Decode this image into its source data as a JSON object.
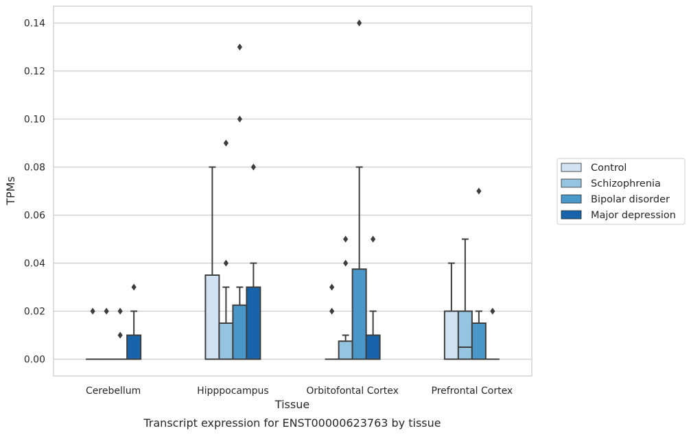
{
  "caption": "Transcript expression for ENST00000623763 by tissue",
  "chart_data": {
    "type": "boxplot",
    "xlabel": "Tissue",
    "ylabel": "TPMs",
    "ylim": [
      -0.007,
      0.147
    ],
    "yticks": [
      "0.00",
      "0.02",
      "0.04",
      "0.06",
      "0.08",
      "0.10",
      "0.12",
      "0.14"
    ],
    "grid": true,
    "legend_position": "right",
    "categories": [
      "Cerebellum",
      "Hipppocampus",
      "Orbitofontal Cortex",
      "Prefrontal Cortex"
    ],
    "series": [
      {
        "name": "Control",
        "color": "#d0e1f2",
        "boxes": [
          {
            "q1": 0,
            "median": 0,
            "q3": 0,
            "whislo": 0,
            "whishi": 0,
            "fliers": [
              0.02
            ]
          },
          {
            "q1": 0,
            "median": 0,
            "q3": 0.035,
            "whislo": 0,
            "whishi": 0.08,
            "fliers": []
          },
          {
            "q1": 0,
            "median": 0,
            "q3": 0,
            "whislo": 0,
            "whishi": 0,
            "fliers": [
              0.02,
              0.03
            ]
          },
          {
            "q1": 0,
            "median": 0,
            "q3": 0.02,
            "whislo": 0,
            "whishi": 0.04,
            "fliers": []
          }
        ]
      },
      {
        "name": "Schizophrenia",
        "color": "#94c4df",
        "boxes": [
          {
            "q1": 0,
            "median": 0,
            "q3": 0,
            "whislo": 0,
            "whishi": 0,
            "fliers": [
              0.02
            ]
          },
          {
            "q1": 0,
            "median": 0,
            "q3": 0.015,
            "whislo": 0,
            "whishi": 0.03,
            "fliers": [
              0.04,
              0.09
            ]
          },
          {
            "q1": 0,
            "median": 0,
            "q3": 0.0075,
            "whislo": 0,
            "whishi": 0.01,
            "fliers": [
              0.04,
              0.05
            ]
          },
          {
            "q1": 0,
            "median": 0.005,
            "q3": 0.02,
            "whislo": 0,
            "whishi": 0.05,
            "fliers": []
          }
        ]
      },
      {
        "name": "Bipolar disorder",
        "color": "#4a98c9",
        "boxes": [
          {
            "q1": 0,
            "median": 0,
            "q3": 0,
            "whislo": 0,
            "whishi": 0,
            "fliers": [
              0.01,
              0.02
            ]
          },
          {
            "q1": 0,
            "median": 0,
            "q3": 0.0225,
            "whislo": 0,
            "whishi": 0.03,
            "fliers": [
              0.1,
              0.13
            ]
          },
          {
            "q1": 0,
            "median": 0,
            "q3": 0.0375,
            "whislo": 0,
            "whishi": 0.08,
            "fliers": [
              0.14
            ]
          },
          {
            "q1": 0,
            "median": 0,
            "q3": 0.015,
            "whislo": 0,
            "whishi": 0.02,
            "fliers": [
              0.07
            ]
          }
        ]
      },
      {
        "name": "Major depression",
        "color": "#1764ab",
        "boxes": [
          {
            "q1": 0,
            "median": 0,
            "q3": 0.01,
            "whislo": 0,
            "whishi": 0.02,
            "fliers": [
              0.03
            ]
          },
          {
            "q1": 0,
            "median": 0,
            "q3": 0.03,
            "whislo": 0,
            "whishi": 0.04,
            "fliers": [
              0.08
            ]
          },
          {
            "q1": 0,
            "median": 0,
            "q3": 0.01,
            "whislo": 0,
            "whishi": 0.02,
            "fliers": [
              0.05
            ]
          },
          {
            "q1": 0,
            "median": 0,
            "q3": 0,
            "whislo": 0,
            "whishi": 0,
            "fliers": [
              0.02
            ]
          }
        ]
      }
    ]
  }
}
